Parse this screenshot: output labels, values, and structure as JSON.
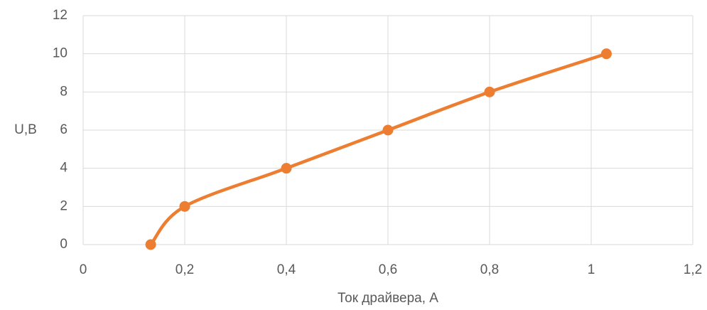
{
  "chart_data": {
    "type": "line",
    "smooth": true,
    "x_label": "Ток драйвера, А",
    "y_label": "U,B",
    "x": [
      0.133,
      0.2,
      0.4,
      0.6,
      0.8,
      1.03
    ],
    "values": [
      0,
      2,
      4,
      6,
      8,
      10
    ],
    "color": "#ed7d31",
    "xlim": [
      0,
      1.2
    ],
    "xticks": [
      0,
      {
        "value": 0.2,
        "label": "0,2"
      },
      {
        "value": 0.4,
        "label": "0,4"
      },
      {
        "value": 0.6,
        "label": "0,6"
      },
      {
        "value": 0.8,
        "label": "0,8"
      },
      1,
      {
        "value": 1.2,
        "label": "1,2"
      }
    ],
    "ylim": [
      0,
      12
    ],
    "yticks": [
      0,
      2,
      4,
      6,
      8,
      10,
      12
    ],
    "grid": true
  }
}
